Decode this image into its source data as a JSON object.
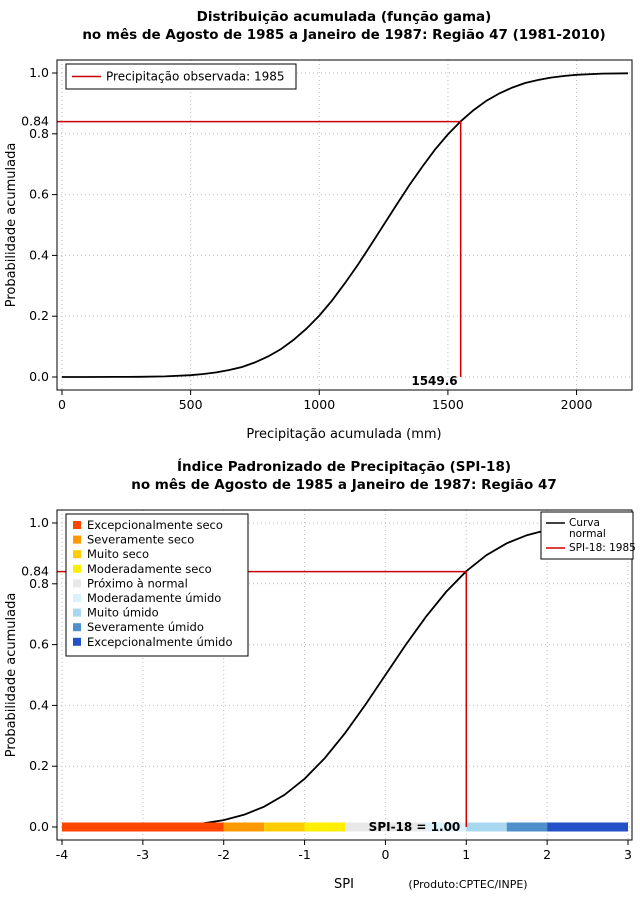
{
  "chart_data": [
    {
      "name": "gamma-cdf",
      "type": "line",
      "title_line1": "Distribuição acumulada (função gama)",
      "title_line2": "no mês de Agosto de 1985 a Janeiro de 1987: Região 47 (1981-2010)",
      "xlabel": "Precipitação acumulada (mm)",
      "ylabel": "Probabilidade acumulada",
      "xlim": [
        0,
        2200
      ],
      "ylim": [
        0,
        1
      ],
      "xticks": [
        0,
        500,
        1000,
        1500,
        2000
      ],
      "yticks": [
        0,
        0.2,
        0.4,
        0.6,
        0.8,
        1
      ],
      "ytick_labels": [
        "0.0",
        "0.2",
        "0.4",
        "0.6",
        "0.8",
        "1.0"
      ],
      "grid": true,
      "legend_position": "top-left",
      "series": [
        {
          "name": "Distribuição acumulada (função gama)",
          "color": "#000000",
          "x": [
            0,
            100,
            200,
            300,
            400,
            500,
            550,
            600,
            650,
            700,
            750,
            800,
            850,
            900,
            950,
            1000,
            1050,
            1100,
            1150,
            1200,
            1250,
            1300,
            1350,
            1400,
            1450,
            1500,
            1549.6,
            1600,
            1650,
            1700,
            1750,
            1800,
            1850,
            1900,
            1950,
            2000,
            2100,
            2200
          ],
          "y": [
            0,
            0,
            0.0002,
            0.0008,
            0.002,
            0.006,
            0.01,
            0.015,
            0.023,
            0.033,
            0.048,
            0.067,
            0.091,
            0.122,
            0.159,
            0.202,
            0.252,
            0.309,
            0.369,
            0.434,
            0.5,
            0.566,
            0.631,
            0.691,
            0.748,
            0.798,
            0.841,
            0.878,
            0.909,
            0.933,
            0.952,
            0.967,
            0.977,
            0.985,
            0.99,
            0.994,
            0.998,
            0.999
          ]
        }
      ],
      "reference": {
        "x": 1549.6,
        "y": 0.84,
        "x_label": "1549.6",
        "y_label": "0.84",
        "color": "#CC0000"
      },
      "legend": [
        {
          "label": "Precipitação observada: 1985",
          "color": "#CC0000"
        }
      ]
    },
    {
      "name": "spi-cdf",
      "type": "line",
      "title_line1": "Índice Padronizado de Precipitação (SPI-18)",
      "title_line2": "no mês de Agosto de 1985 a Janeiro de 1987: Região 47",
      "xlabel": "SPI",
      "ylabel": "Probabilidade acumulada",
      "footnote": "(Produto:CPTEC/INPE)",
      "xlim": [
        -4,
        3
      ],
      "ylim": [
        0,
        1
      ],
      "xticks": [
        -4,
        -3,
        -2,
        -1,
        0,
        1,
        2,
        3
      ],
      "yticks": [
        0,
        0.2,
        0.4,
        0.6,
        0.8,
        1
      ],
      "ytick_labels": [
        "0.0",
        "0.2",
        "0.4",
        "0.6",
        "0.8",
        "1.0"
      ],
      "grid": true,
      "series": [
        {
          "name": "Curva normal",
          "color": "#000000",
          "x": [
            -4,
            -3.75,
            -3.5,
            -3.25,
            -3,
            -2.75,
            -2.5,
            -2.25,
            -2,
            -1.75,
            -1.5,
            -1.25,
            -1,
            -0.75,
            -0.5,
            -0.25,
            0,
            0.25,
            0.5,
            0.75,
            1,
            1.25,
            1.5,
            1.75,
            2,
            2.25,
            2.5,
            2.75,
            3
          ],
          "y": [
            0.0,
            0.0001,
            0.0002,
            0.0006,
            0.0013,
            0.003,
            0.0062,
            0.0122,
            0.0228,
            0.0401,
            0.0668,
            0.1056,
            0.1587,
            0.2266,
            0.3085,
            0.4013,
            0.5,
            0.5987,
            0.6915,
            0.7734,
            0.8413,
            0.8944,
            0.9332,
            0.9599,
            0.9772,
            0.9878,
            0.9938,
            0.997,
            0.9987
          ]
        }
      ],
      "reference": {
        "x": 1,
        "y": 0.84,
        "y_label": "0.84",
        "color": "#CC0000"
      },
      "bar_label": {
        "text": "SPI-18 = 1.00",
        "color": "#00008B"
      },
      "category_legend": [
        {
          "label": "Excepcionalmente seco",
          "color": "#FF4400"
        },
        {
          "label": "Severamente seco",
          "color": "#FF9900"
        },
        {
          "label": "Muito seco",
          "color": "#FFCC00"
        },
        {
          "label": "Moderadamente seco",
          "color": "#FFEE00"
        },
        {
          "label": "Próximo à normal",
          "color": "#E8E8E8"
        },
        {
          "label": "Moderadamente úmido",
          "color": "#DCF2FB"
        },
        {
          "label": "Muito úmido",
          "color": "#A8D8F0"
        },
        {
          "label": "Severamente úmido",
          "color": "#4E8FCC"
        },
        {
          "label": "Excepcionalmente úmido",
          "color": "#2351C8"
        }
      ],
      "bar_segments": [
        {
          "from": -4,
          "to": -2,
          "color": "#FF4400"
        },
        {
          "from": -2,
          "to": -1.5,
          "color": "#FF9900"
        },
        {
          "from": -1.5,
          "to": -1,
          "color": "#FFCC00"
        },
        {
          "from": -1,
          "to": -0.5,
          "color": "#FFEE00"
        },
        {
          "from": -0.5,
          "to": 0.5,
          "color": "#E8E8E8"
        },
        {
          "from": 0.5,
          "to": 1,
          "color": "#DCF2FB"
        },
        {
          "from": 1,
          "to": 1.5,
          "color": "#A8D8F0"
        },
        {
          "from": 1.5,
          "to": 2,
          "color": "#4E8FCC"
        },
        {
          "from": 2,
          "to": 3,
          "color": "#2351C8"
        }
      ],
      "right_legend": [
        {
          "lines": [
            "Curva",
            "normal"
          ],
          "color": "#000000"
        },
        {
          "lines": [
            "SPI-18: 1985"
          ],
          "color": "#CC0000"
        }
      ]
    }
  ]
}
